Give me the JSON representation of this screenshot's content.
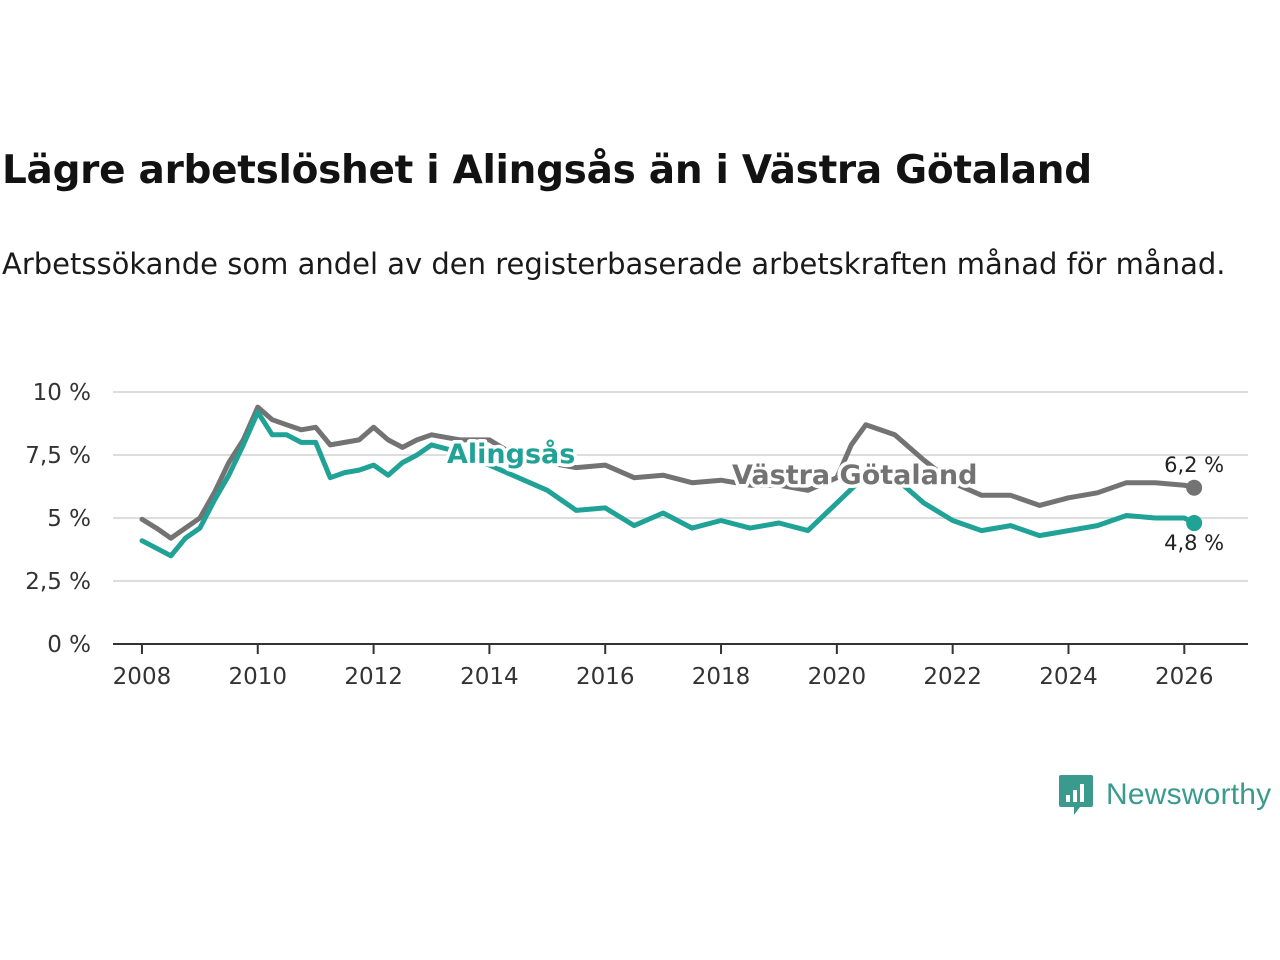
{
  "chart": {
    "title": "Lägre arbetslöshet i Alingsås än i Västra Götaland",
    "subtitle": "Arbetssökande som andel av den registerbaserade arbetskraften månad för månad."
  },
  "brand": {
    "name": "Newsworthy",
    "icon": "bar-chart-speech-bubble-icon",
    "color": "#3a9a8e"
  },
  "chart_data": {
    "type": "line",
    "title": "Lägre arbetslöshet i Alingsås än i Västra Götaland",
    "subtitle": "Arbetssökande som andel av den registerbaserade arbetskraften månad för månad.",
    "xlabel": "",
    "ylabel": "",
    "xlim": [
      2007.5,
      2027.1
    ],
    "ylim": [
      0,
      10
    ],
    "x_ticks": [
      2008,
      2010,
      2012,
      2014,
      2016,
      2018,
      2020,
      2022,
      2024,
      2026
    ],
    "y_ticks": [
      {
        "value": 0,
        "label": "0 %"
      },
      {
        "value": 2.5,
        "label": "2,5 %"
      },
      {
        "value": 5,
        "label": "5 %"
      },
      {
        "value": 7.5,
        "label": "7,5 %"
      },
      {
        "value": 10,
        "label": "10 %"
      }
    ],
    "grid": true,
    "legend": "inline labels",
    "series": [
      {
        "name": "Västra Götaland",
        "color": "#737373",
        "end_label": "6,2 %",
        "points": [
          [
            2008.0,
            4.95
          ],
          [
            2008.25,
            4.6
          ],
          [
            2008.5,
            4.2
          ],
          [
            2008.75,
            4.6
          ],
          [
            2009.0,
            5.0
          ],
          [
            2009.25,
            6.0
          ],
          [
            2009.5,
            7.2
          ],
          [
            2009.75,
            8.1
          ],
          [
            2010.0,
            9.4
          ],
          [
            2010.25,
            8.9
          ],
          [
            2010.5,
            8.7
          ],
          [
            2010.75,
            8.5
          ],
          [
            2011.0,
            8.6
          ],
          [
            2011.25,
            7.9
          ],
          [
            2011.5,
            8.0
          ],
          [
            2011.75,
            8.1
          ],
          [
            2012.0,
            8.6
          ],
          [
            2012.25,
            8.1
          ],
          [
            2012.5,
            7.8
          ],
          [
            2012.75,
            8.1
          ],
          [
            2013.0,
            8.3
          ],
          [
            2013.5,
            8.1
          ],
          [
            2014.0,
            8.1
          ],
          [
            2014.5,
            7.4
          ],
          [
            2015.0,
            7.2
          ],
          [
            2015.5,
            7.0
          ],
          [
            2016.0,
            7.1
          ],
          [
            2016.5,
            6.6
          ],
          [
            2017.0,
            6.7
          ],
          [
            2017.5,
            6.4
          ],
          [
            2018.0,
            6.5
          ],
          [
            2018.5,
            6.3
          ],
          [
            2019.0,
            6.3
          ],
          [
            2019.5,
            6.1
          ],
          [
            2020.0,
            6.6
          ],
          [
            2020.25,
            7.9
          ],
          [
            2020.5,
            8.7
          ],
          [
            2020.75,
            8.5
          ],
          [
            2021.0,
            8.3
          ],
          [
            2021.5,
            7.3
          ],
          [
            2022.0,
            6.4
          ],
          [
            2022.5,
            5.9
          ],
          [
            2023.0,
            5.9
          ],
          [
            2023.5,
            5.5
          ],
          [
            2024.0,
            5.8
          ],
          [
            2024.5,
            6.0
          ],
          [
            2025.0,
            6.4
          ],
          [
            2025.5,
            6.4
          ],
          [
            2026.0,
            6.3
          ],
          [
            2026.17,
            6.2
          ]
        ]
      },
      {
        "name": "Alingsås",
        "color": "#21a296",
        "end_label": "4,8 %",
        "points": [
          [
            2008.0,
            4.1
          ],
          [
            2008.25,
            3.8
          ],
          [
            2008.5,
            3.5
          ],
          [
            2008.75,
            4.2
          ],
          [
            2009.0,
            4.6
          ],
          [
            2009.25,
            5.7
          ],
          [
            2009.5,
            6.7
          ],
          [
            2009.75,
            7.9
          ],
          [
            2010.0,
            9.2
          ],
          [
            2010.25,
            8.3
          ],
          [
            2010.5,
            8.3
          ],
          [
            2010.75,
            8.0
          ],
          [
            2011.0,
            8.0
          ],
          [
            2011.25,
            6.6
          ],
          [
            2011.5,
            6.8
          ],
          [
            2011.75,
            6.9
          ],
          [
            2012.0,
            7.1
          ],
          [
            2012.25,
            6.7
          ],
          [
            2012.5,
            7.2
          ],
          [
            2012.75,
            7.5
          ],
          [
            2013.0,
            7.9
          ],
          [
            2013.5,
            7.6
          ],
          [
            2014.0,
            7.1
          ],
          [
            2014.5,
            6.6
          ],
          [
            2015.0,
            6.1
          ],
          [
            2015.5,
            5.3
          ],
          [
            2016.0,
            5.4
          ],
          [
            2016.5,
            4.7
          ],
          [
            2017.0,
            5.2
          ],
          [
            2017.5,
            4.6
          ],
          [
            2018.0,
            4.9
          ],
          [
            2018.5,
            4.6
          ],
          [
            2019.0,
            4.8
          ],
          [
            2019.5,
            4.5
          ],
          [
            2020.0,
            5.6
          ],
          [
            2020.5,
            6.7
          ],
          [
            2021.0,
            6.6
          ],
          [
            2021.5,
            5.6
          ],
          [
            2022.0,
            4.9
          ],
          [
            2022.5,
            4.5
          ],
          [
            2023.0,
            4.7
          ],
          [
            2023.5,
            4.3
          ],
          [
            2024.0,
            4.5
          ],
          [
            2024.5,
            4.7
          ],
          [
            2025.0,
            5.1
          ],
          [
            2025.5,
            5.0
          ],
          [
            2026.0,
            5.0
          ],
          [
            2026.17,
            4.8
          ]
        ]
      }
    ]
  }
}
